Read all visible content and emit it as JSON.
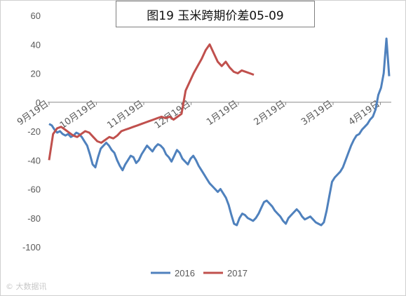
{
  "chart_data": {
    "type": "line",
    "title": "图19 玉米跨期价差05-09",
    "ylim": [
      -100,
      60
    ],
    "y_ticks": [
      60,
      40,
      20,
      0,
      -20,
      -40,
      -60,
      -80,
      -100
    ],
    "x_tick_labels": [
      "9月19日",
      "10月19日",
      "11月19日",
      "12月19日",
      "1月19日",
      "2月19日",
      "3月19日",
      "4月19日"
    ],
    "grid": false,
    "legend_position": "bottom",
    "series": [
      {
        "name": "2016",
        "color": "#4f81bd",
        "values": [
          -15,
          -16,
          -19,
          -21,
          -20,
          -22,
          -23,
          -22,
          -24,
          -23,
          -21,
          -22,
          -24,
          -27,
          -30,
          -36,
          -43,
          -45,
          -38,
          -32,
          -30,
          -28,
          -30,
          -33,
          -35,
          -40,
          -44,
          -47,
          -43,
          -40,
          -37,
          -38,
          -42,
          -40,
          -36,
          -33,
          -30,
          -32,
          -34,
          -31,
          -29,
          -30,
          -32,
          -36,
          -38,
          -41,
          -37,
          -33,
          -35,
          -39,
          -41,
          -43,
          -39,
          -37,
          -40,
          -44,
          -47,
          -50,
          -53,
          -56,
          -58,
          -60,
          -62,
          -60,
          -63,
          -66,
          -71,
          -78,
          -84,
          -85,
          -80,
          -77,
          -78,
          -80,
          -81,
          -82,
          -80,
          -77,
          -73,
          -69,
          -68,
          -70,
          -72,
          -75,
          -77,
          -79,
          -82,
          -84,
          -80,
          -78,
          -76,
          -74,
          -76,
          -79,
          -81,
          -80,
          -79,
          -81,
          -83,
          -84,
          -85,
          -83,
          -75,
          -65,
          -55,
          -52,
          -50,
          -48,
          -45,
          -40,
          -35,
          -30,
          -26,
          -23,
          -22,
          -19,
          -17,
          -15,
          -12,
          -10,
          -5,
          5,
          10,
          20,
          44,
          18
        ]
      },
      {
        "name": "2017",
        "color": "#c0504d",
        "values": [
          -40,
          -22,
          -18,
          -17,
          -19,
          -21,
          -23,
          -24,
          -22,
          -20,
          -21,
          -24,
          -27,
          -28,
          -26,
          -24,
          -25,
          -23,
          -20,
          -19,
          -18,
          -17,
          -16,
          -15,
          -14,
          -13,
          -12,
          -11,
          -10,
          -11,
          -10,
          -12,
          -10,
          -8,
          8,
          14,
          20,
          25,
          30,
          36,
          40,
          34,
          28,
          25,
          28,
          24,
          21,
          20,
          22,
          21,
          20,
          19
        ]
      }
    ]
  },
  "watermark": "© 大数据讯"
}
